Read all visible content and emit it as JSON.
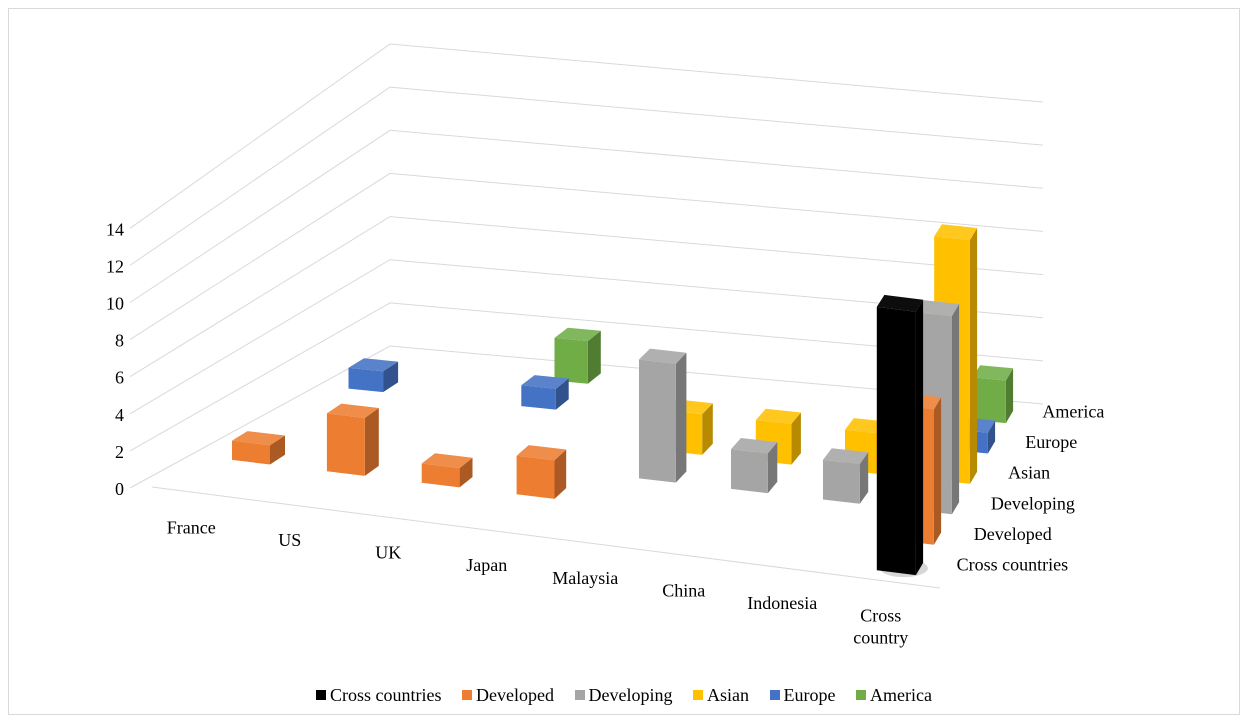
{
  "chart_data": {
    "type": "bar",
    "subtype": "3d-column",
    "title": "",
    "xlabel": "",
    "ylabel": "",
    "ylim": [
      0,
      14
    ],
    "yticks": [
      "0",
      "2",
      "4",
      "6",
      "8",
      "10",
      "12",
      "14"
    ],
    "categories": [
      "France",
      "US",
      "UK",
      "Japan",
      "Malaysia",
      "China",
      "Indonesia",
      "Cross country"
    ],
    "depth_labels": [
      "Cross countries",
      "Developed",
      "Developing",
      "Asian",
      "Europe",
      "America"
    ],
    "grid": true,
    "legend_position": "bottom",
    "series": [
      {
        "name": "Cross countries",
        "color": "#000000",
        "values": [
          null,
          null,
          null,
          null,
          null,
          null,
          null,
          14
        ]
      },
      {
        "name": "Developed",
        "color": "#ed7d31",
        "values": [
          1,
          3,
          1,
          2,
          null,
          null,
          null,
          7
        ]
      },
      {
        "name": "Developing",
        "color": "#a5a5a5",
        "values": [
          null,
          null,
          null,
          null,
          6,
          2,
          2,
          10
        ]
      },
      {
        "name": "Asian",
        "color": "#ffc000",
        "values": [
          null,
          null,
          null,
          null,
          2,
          2,
          2,
          12
        ]
      },
      {
        "name": "Europe",
        "color": "#4472c4",
        "values": [
          1,
          null,
          1,
          null,
          null,
          null,
          null,
          1
        ]
      },
      {
        "name": "America",
        "color": "#70ad47",
        "values": [
          null,
          null,
          2,
          null,
          null,
          null,
          null,
          2
        ]
      }
    ]
  }
}
